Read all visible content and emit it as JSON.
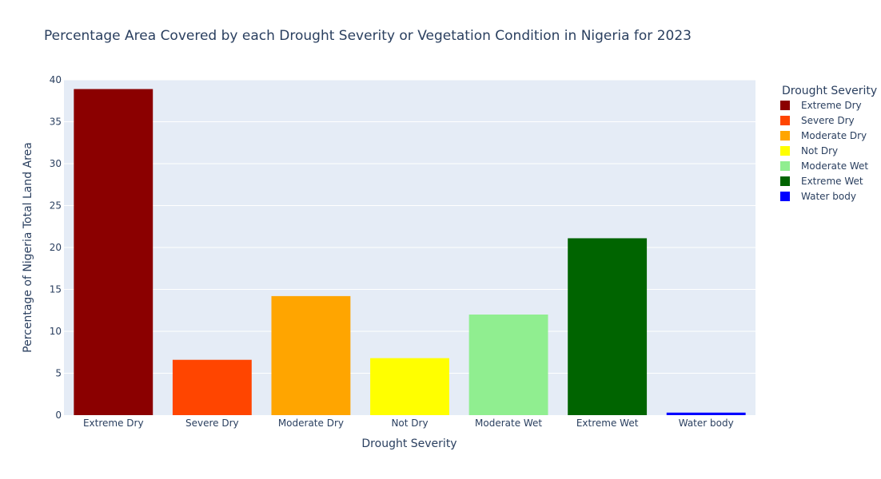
{
  "chart_data": {
    "type": "bar",
    "title": "Percentage Area Covered by each Drought Severity or Vegetation Condition in Nigeria for 2023",
    "xlabel": "Drought Severity",
    "ylabel": "Percentage of Nigeria Total Land Area",
    "ylim": [
      0,
      40
    ],
    "yticks": [
      0,
      5,
      10,
      15,
      20,
      25,
      30,
      35,
      40
    ],
    "grid": true,
    "legend_title": "Drought Severity",
    "legend_position": "right",
    "categories": [
      "Extreme Dry",
      "Severe Dry",
      "Moderate Dry",
      "Not Dry",
      "Moderate Wet",
      "Extreme Wet",
      "Water body"
    ],
    "values": [
      38.9,
      6.6,
      14.2,
      6.8,
      12.0,
      21.1,
      0.3
    ],
    "colors": [
      "#8b0000",
      "#ff4500",
      "#ffa500",
      "#ffff00",
      "#90ee90",
      "#006400",
      "#0000ff"
    ]
  },
  "style": {
    "plot_background": "#e5ecf6",
    "grid_color": "#ffffff",
    "text_color": "#2a3f5f"
  }
}
